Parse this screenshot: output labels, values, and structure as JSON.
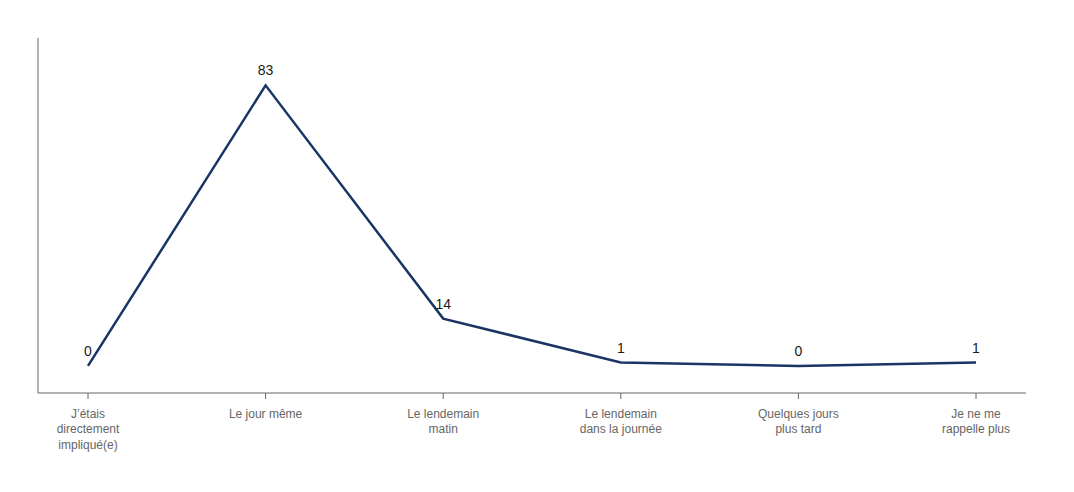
{
  "chart_data": {
    "type": "line",
    "categories": [
      "J’étais\ndirectement\nimpliqué(e)",
      "Le jour même",
      "Le lendemain\nmatin",
      "Le lendemain\ndans la journée",
      "Quelques jours\nplus tard",
      "Je ne me\nrappelle plus"
    ],
    "values": [
      0,
      83,
      14,
      1,
      0,
      1
    ],
    "color": "#1a3564",
    "ylim": [
      -8,
      97
    ],
    "data_labels": true,
    "tick_labels": "x",
    "grid": false
  }
}
